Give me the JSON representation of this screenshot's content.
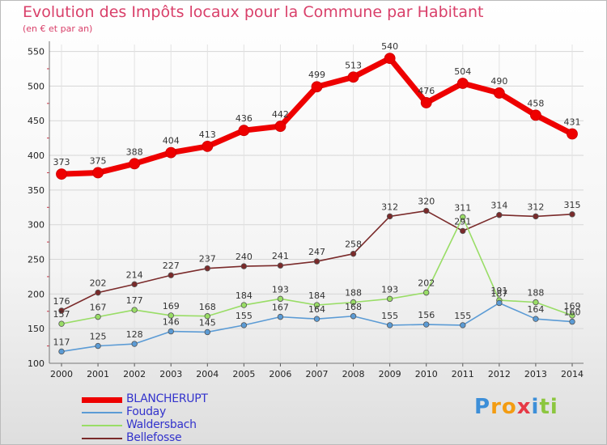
{
  "chart_data": {
    "type": "line",
    "title": "Evolution des Impôts locaux pour la Commune par Habitant",
    "subtitle": "(en € et par an)",
    "x": [
      "2000",
      "2001",
      "2002",
      "2003",
      "2004",
      "2005",
      "2006",
      "2007",
      "2008",
      "2009",
      "2010",
      "2011",
      "2012",
      "2013",
      "2014"
    ],
    "yticks": [
      "100",
      "150",
      "200",
      "250",
      "300",
      "350",
      "400",
      "450",
      "500",
      "550"
    ],
    "ylim": [
      100,
      560
    ],
    "series": [
      {
        "name": "BLANCHERUPT",
        "color": "#ee0000",
        "values": [
          373,
          375,
          388,
          404,
          413,
          436,
          442,
          499,
          513,
          540,
          476,
          504,
          490,
          458,
          431
        ]
      },
      {
        "name": "Fouday",
        "color": "#5b9bd5",
        "values": [
          117,
          125,
          128,
          146,
          145,
          155,
          167,
          164,
          168,
          155,
          156,
          155,
          187,
          164,
          160
        ]
      },
      {
        "name": "Waldersbach",
        "color": "#99dd66",
        "values": [
          157,
          167,
          177,
          169,
          168,
          184,
          193,
          184,
          188,
          193,
          202,
          311,
          191,
          188,
          169
        ]
      },
      {
        "name": "Bellefosse",
        "color": "#7a2a2a",
        "values": [
          176,
          202,
          214,
          227,
          237,
          240,
          241,
          247,
          258,
          312,
          320,
          291,
          314,
          312,
          315
        ]
      }
    ]
  },
  "logo": {
    "letters": [
      "P",
      "r",
      "o",
      "x",
      "i",
      "t",
      "i"
    ],
    "colors": [
      "#3d8fd8",
      "#f39c12",
      "#f39c12",
      "#e63946",
      "#3d8fd8",
      "#8cc63f",
      "#8cc63f"
    ]
  }
}
